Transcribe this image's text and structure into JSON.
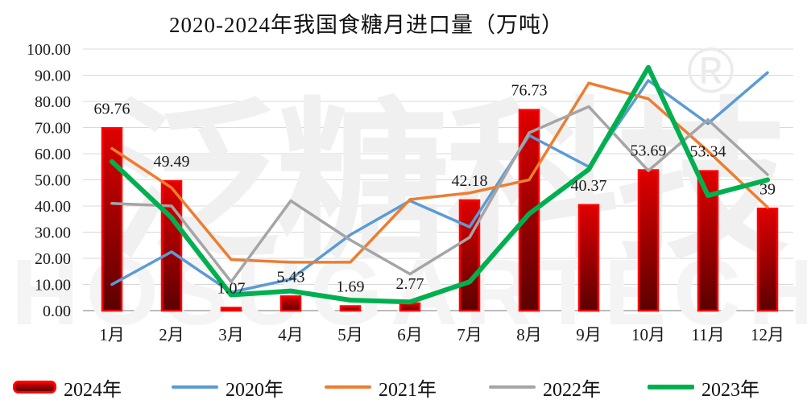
{
  "title": "2020-2024年我国食糖月进口量（万吨）",
  "watermark": {
    "cn": "泛糖科技",
    "reg": "®",
    "en": "HOSUGARTECH"
  },
  "colors": {
    "bar_border": "#ff0000",
    "bar_fill_top": "#e00000",
    "bar_fill_bottom": "#5c0000",
    "grid": "#d9d9d9",
    "axis": "#a6a6a6",
    "text": "#1a1a1a"
  },
  "chart_data": {
    "type": "combo-bar-line",
    "categories": [
      "1月",
      "2月",
      "3月",
      "4月",
      "5月",
      "6月",
      "7月",
      "8月",
      "9月",
      "10月",
      "11月",
      "12月"
    ],
    "y_axis": {
      "min": 0,
      "max": 100,
      "step": 10,
      "decimals": 2
    },
    "grid": "horizontal",
    "legend_position": "bottom",
    "bar_series": {
      "name": "2024年",
      "values": [
        69.76,
        49.49,
        1.07,
        5.43,
        1.69,
        2.77,
        42.18,
        76.73,
        40.37,
        53.69,
        53.34,
        39
      ],
      "data_labels": [
        "69.76",
        "49.49",
        "1.07",
        "5.43",
        "1.69",
        "2.77",
        "42.18",
        "76.73",
        "40.37",
        "53.69",
        "53.34",
        "39"
      ]
    },
    "line_series": [
      {
        "name": "2020年",
        "color": "#5b9bd5",
        "width": 3.5,
        "values": [
          10,
          22.5,
          7,
          12,
          29,
          42,
          32,
          67,
          55,
          88,
          71.5,
          91
        ]
      },
      {
        "name": "2021年",
        "color": "#ed7d31",
        "width": 3.5,
        "values": [
          62,
          47,
          19.5,
          18.5,
          18.5,
          42.5,
          45,
          50,
          87,
          81,
          61,
          39.5
        ]
      },
      {
        "name": "2022年",
        "color": "#a5a5a5",
        "width": 3.5,
        "values": [
          41,
          40,
          11,
          42,
          27,
          14,
          28,
          68,
          78,
          53.5,
          73,
          52
        ]
      },
      {
        "name": "2023年",
        "color": "#00b050",
        "width": 6,
        "values": [
          57,
          35.5,
          6,
          7.5,
          4,
          3.3,
          11,
          37,
          54,
          93,
          44,
          50
        ]
      }
    ]
  },
  "legend": {
    "items": [
      {
        "label": "2024年",
        "swatch": "bar"
      },
      {
        "label": "2020年",
        "swatch": "line",
        "color": "#5b9bd5",
        "thickness": 4
      },
      {
        "label": "2021年",
        "swatch": "line",
        "color": "#ed7d31",
        "thickness": 4
      },
      {
        "label": "2022年",
        "swatch": "line",
        "color": "#a5a5a5",
        "thickness": 4
      },
      {
        "label": "2023年",
        "swatch": "line",
        "color": "#00b050",
        "thickness": 6
      }
    ]
  }
}
